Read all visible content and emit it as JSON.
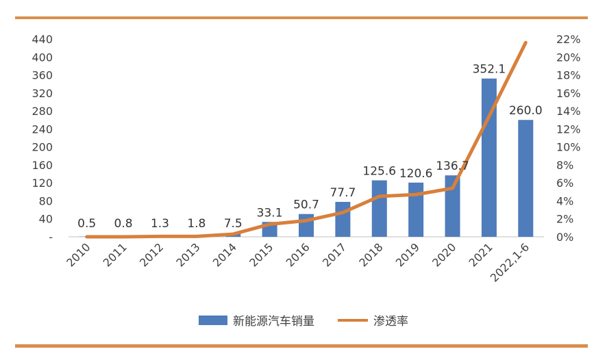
{
  "chart_data": {
    "type": "bar",
    "categories": [
      "2010",
      "2011",
      "2012",
      "2013",
      "2014",
      "2015",
      "2016",
      "2017",
      "2018",
      "2019",
      "2020",
      "2021",
      "2022,1-6"
    ],
    "series": [
      {
        "name": "新能源汽车销量",
        "type": "bar",
        "axis": "left",
        "values": [
          0.5,
          0.8,
          1.3,
          1.8,
          7.5,
          33.1,
          50.7,
          77.7,
          125.6,
          120.6,
          136.7,
          352.1,
          260.0
        ],
        "labels": [
          "0.5",
          "0.8",
          "1.3",
          "1.8",
          "7.5",
          "33.1",
          "50.7",
          "77.7",
          "125.6",
          "120.6",
          "136.7",
          "352.1",
          "260.0"
        ],
        "color": "#4f7cba"
      },
      {
        "name": "渗透率",
        "type": "line",
        "axis": "right",
        "values": [
          0.0,
          0.0,
          0.05,
          0.05,
          0.3,
          1.4,
          1.8,
          2.7,
          4.5,
          4.7,
          5.4,
          13.4,
          21.6
        ],
        "color": "#d8803c"
      }
    ],
    "y_left": {
      "ylim": [
        0,
        440
      ],
      "ticks": [
        0,
        40,
        80,
        120,
        160,
        200,
        240,
        280,
        320,
        360,
        400,
        440
      ],
      "tick_labels": [
        "-",
        "40",
        "80",
        "120",
        "160",
        "200",
        "240",
        "280",
        "320",
        "360",
        "400",
        "440"
      ]
    },
    "y_right": {
      "ylim": [
        0,
        22
      ],
      "ticks": [
        0,
        2,
        4,
        6,
        8,
        10,
        12,
        14,
        16,
        18,
        20,
        22
      ],
      "tick_labels": [
        "0%",
        "2%",
        "4%",
        "6%",
        "8%",
        "10%",
        "12%",
        "14%",
        "16%",
        "18%",
        "20%",
        "22%"
      ]
    },
    "legend_position": "bottom",
    "grid": false,
    "accent_color": "#d98f4e"
  }
}
